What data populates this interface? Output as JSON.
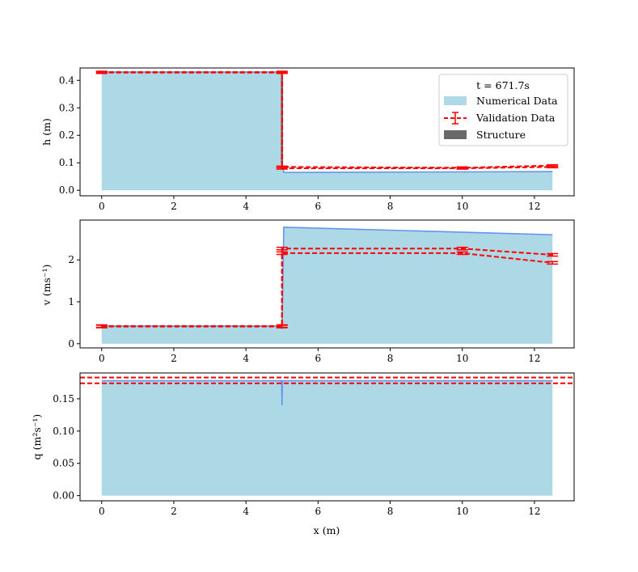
{
  "figure": {
    "legend": {
      "title": "t = 671.7s",
      "entries": [
        {
          "label": "Numerical Data",
          "kind": "fill"
        },
        {
          "label": "Validation Data",
          "kind": "errorline"
        },
        {
          "label": "Structure",
          "kind": "structure"
        }
      ],
      "placement": "top-right"
    },
    "colors": {
      "fill": "#add8e6",
      "line": "#6495ed",
      "validation": "#ff0000",
      "structure": "#696969"
    }
  },
  "chart_data": [
    {
      "type": "area",
      "panel": "h",
      "ylabel": "h (m)",
      "xlim": [
        -0.6,
        13.1
      ],
      "ylim": [
        -0.02,
        0.445
      ],
      "xticks": [
        0,
        2,
        4,
        6,
        8,
        10,
        12
      ],
      "yticks": [
        0.0,
        0.1,
        0.2,
        0.3,
        0.4
      ],
      "ytick_labels": [
        "0.0",
        "0.1",
        "0.2",
        "0.3",
        "0.4"
      ],
      "numerical": {
        "x": [
          0,
          4.99,
          5.0,
          5.05,
          12.5
        ],
        "y": [
          0.43,
          0.43,
          0.1,
          0.065,
          0.068
        ]
      },
      "validation": [
        {
          "x": [
            0,
            5.0,
            5.0,
            10,
            12.5
          ],
          "y": [
            0.43,
            0.43,
            0.08,
            0.08,
            0.085
          ],
          "err": [
            0.003,
            0.003,
            0.003,
            0.003,
            0.003
          ]
        },
        {
          "x": [
            0,
            5.0,
            5.0,
            10,
            12.5
          ],
          "y": [
            0.428,
            0.428,
            0.085,
            0.082,
            0.09
          ],
          "err": [
            0.003,
            0.003,
            0.003,
            0.003,
            0.003
          ]
        }
      ],
      "structure": {
        "x0": 4.97,
        "x1": 5.03,
        "y0": 0.1,
        "y1": 0.41
      }
    },
    {
      "type": "area",
      "panel": "v",
      "ylabel": "v (ms⁻¹)",
      "xlim": [
        -0.6,
        13.1
      ],
      "ylim": [
        -0.1,
        2.95
      ],
      "xticks": [
        0,
        2,
        4,
        6,
        8,
        10,
        12
      ],
      "yticks": [
        0,
        1,
        2
      ],
      "ytick_labels": [
        "0",
        "1",
        "2"
      ],
      "numerical": {
        "x": [
          0,
          4.99,
          5.0,
          5.05,
          12.5
        ],
        "y": [
          0.42,
          0.42,
          0.35,
          2.78,
          2.6
        ]
      },
      "validation": [
        {
          "x": [
            0,
            5.0,
            5.0,
            10,
            12.5
          ],
          "y": [
            0.42,
            0.42,
            2.27,
            2.27,
            2.12
          ],
          "err": [
            0.03,
            0.03,
            0.03,
            0.03,
            0.03
          ]
        },
        {
          "x": [
            0,
            5.0,
            5.0,
            10,
            12.5
          ],
          "y": [
            0.41,
            0.41,
            2.16,
            2.16,
            1.93
          ],
          "err": [
            0.03,
            0.03,
            0.03,
            0.03,
            0.03
          ]
        }
      ]
    },
    {
      "type": "area",
      "panel": "q",
      "ylabel": "q (m²s⁻¹)",
      "xlabel": "x (m)",
      "xlim": [
        -0.6,
        13.1
      ],
      "ylim": [
        -0.008,
        0.19
      ],
      "xticks": [
        0,
        2,
        4,
        6,
        8,
        10,
        12
      ],
      "yticks": [
        0.0,
        0.05,
        0.1,
        0.15
      ],
      "ytick_labels": [
        "0.00",
        "0.05",
        "0.10",
        "0.15"
      ],
      "numerical": {
        "x": [
          0,
          4.99,
          5.0,
          5.01,
          12.5
        ],
        "y": [
          0.178,
          0.178,
          0.14,
          0.178,
          0.178
        ]
      },
      "validation_hlines": [
        0.183,
        0.174
      ]
    }
  ]
}
